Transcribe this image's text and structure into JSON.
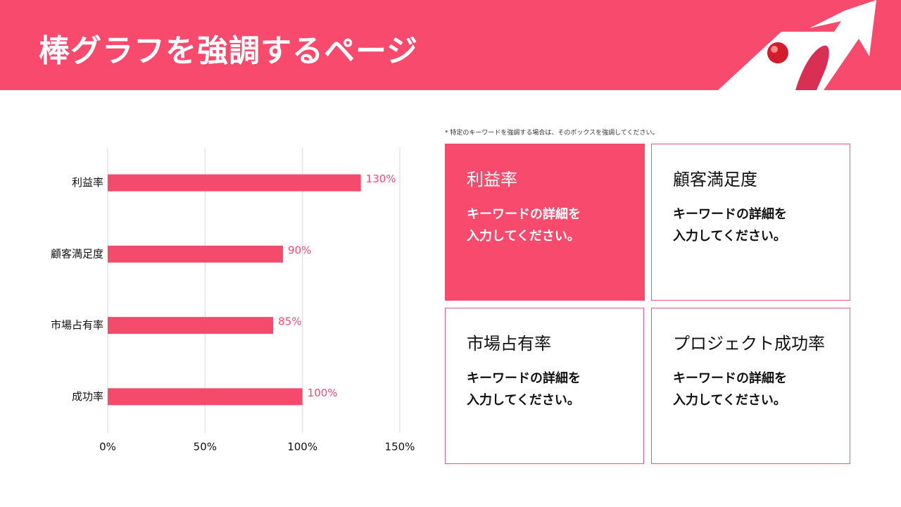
{
  "header": {
    "title": "棒グラフを強調するページ"
  },
  "note": "* 特定のキーワードを強調する場合は、そのボックスを強調してください。",
  "chart_data": {
    "type": "bar",
    "orientation": "horizontal",
    "categories": [
      "利益率",
      "顧客満足度",
      "市場占有率",
      "成功率"
    ],
    "values": [
      130,
      90,
      85,
      100
    ],
    "value_labels": [
      "130%",
      "90%",
      "85%",
      "100%"
    ],
    "color": "#f44a6c",
    "xlim": [
      0,
      150
    ],
    "xticks": [
      {
        "value": 0,
        "label": "0%"
      },
      {
        "value": 50,
        "label": "50%"
      },
      {
        "value": 100,
        "label": "100%"
      },
      {
        "value": 150,
        "label": "150%"
      }
    ],
    "grid": true
  },
  "boxes": [
    {
      "title": "利益率",
      "lines": [
        "キーワードの詳細を",
        "入力してください。"
      ],
      "highlight": true
    },
    {
      "title": "顧客満足度",
      "lines": [
        "キーワードの詳細を",
        "入力してください。"
      ],
      "highlight": false
    },
    {
      "title": "市場占有率",
      "lines": [
        "キーワードの詳細を",
        "入力してください。"
      ],
      "highlight": false
    },
    {
      "title": "プロジェクト成功率",
      "lines": [
        "キーワードの詳細を",
        "入力してください。"
      ],
      "highlight": false
    }
  ]
}
